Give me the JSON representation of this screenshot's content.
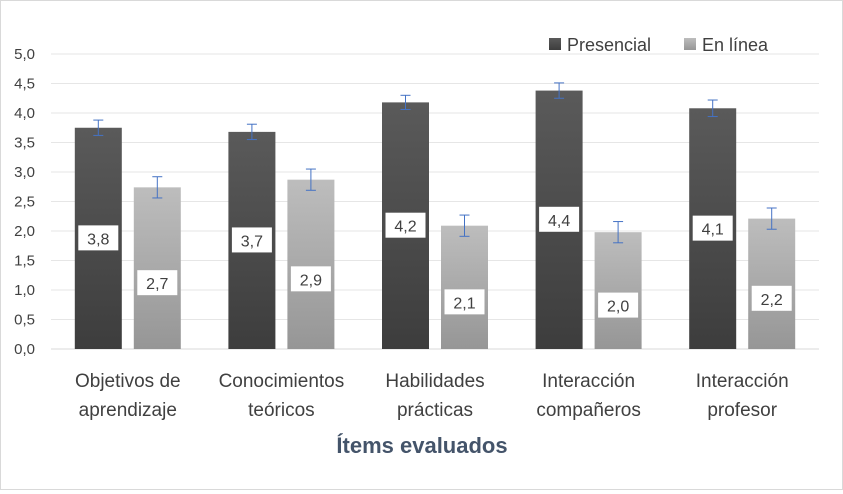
{
  "chart_data": {
    "type": "bar",
    "title": "",
    "xlabel": "Ítems evaluados",
    "ylabel": "",
    "ylim": [
      0,
      5
    ],
    "yticks": [
      "0,0",
      "0,5",
      "1,0",
      "1,5",
      "2,0",
      "2,5",
      "3,0",
      "3,5",
      "4,0",
      "4,5",
      "5,0"
    ],
    "grid": true,
    "legend_position": "top-right",
    "categories": [
      [
        "Objetivos de",
        "aprendizaje"
      ],
      [
        "Conocimientos",
        "teóricos"
      ],
      [
        "Habilidades",
        "prácticas"
      ],
      [
        "Interacción",
        "compañeros"
      ],
      [
        "Interacción",
        "profesor"
      ]
    ],
    "series": [
      {
        "name": "Presencial",
        "color": "#595959",
        "values": [
          3.75,
          3.68,
          4.18,
          4.38,
          4.08
        ],
        "errors": [
          0.13,
          0.13,
          0.12,
          0.13,
          0.14
        ],
        "labels": [
          "3,8",
          "3,7",
          "4,2",
          "4,4",
          "4,1"
        ]
      },
      {
        "name": "En línea",
        "color": "#a6a6a6",
        "values": [
          2.74,
          2.87,
          2.09,
          1.98,
          2.21
        ],
        "errors": [
          0.18,
          0.18,
          0.18,
          0.18,
          0.18
        ],
        "labels": [
          "2,7",
          "2,9",
          "2,1",
          "2,0",
          "2,2"
        ]
      }
    ]
  }
}
